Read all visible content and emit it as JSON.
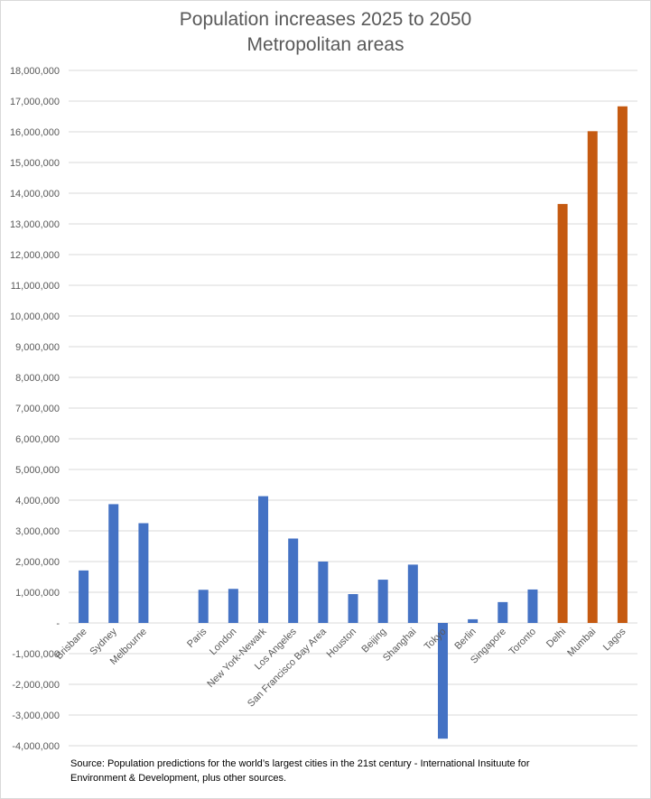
{
  "chart_data": {
    "type": "bar",
    "title": "Population increases 2025 to 2050",
    "subtitle": "Metropolitan areas",
    "xlabel": "",
    "ylabel": "",
    "ylim": [
      -4000000,
      18000000
    ],
    "ytick_step": 1000000,
    "ytick_labels": [
      "-4,000,000",
      "-3,000,000",
      "-2,000,000",
      "-1,000,000",
      "-",
      "1,000,000",
      "2,000,000",
      "3,000,000",
      "4,000,000",
      "5,000,000",
      "6,000,000",
      "7,000,000",
      "8,000,000",
      "9,000,000",
      "10,000,000",
      "11,000,000",
      "12,000,000",
      "13,000,000",
      "14,000,000",
      "15,000,000",
      "16,000,000",
      "17,000,000",
      "18,000,000"
    ],
    "grid": true,
    "legend": "none",
    "categories": [
      "Brisbane",
      "Sydney",
      "Melbourne",
      "",
      "Paris",
      "London",
      "New York-Newark",
      "Los Angeles",
      "San Francisco Bay Area",
      "Houston",
      "Beijing",
      "Shanghai",
      "Tokyo",
      "Berlin",
      "Singapore",
      "Toronto",
      "Delhi",
      "Mumbai",
      "Lagos"
    ],
    "values": [
      1710000,
      3870000,
      3250000,
      null,
      1080000,
      1110000,
      4130000,
      2750000,
      2000000,
      940000,
      1410000,
      1900000,
      -3770000,
      120000,
      680000,
      1090000,
      13650000,
      16020000,
      16830000
    ],
    "bar_colors": [
      "#4472C4",
      "#4472C4",
      "#4472C4",
      null,
      "#4472C4",
      "#4472C4",
      "#4472C4",
      "#4472C4",
      "#4472C4",
      "#4472C4",
      "#4472C4",
      "#4472C4",
      "#4472C4",
      "#4472C4",
      "#4472C4",
      "#4472C4",
      "#C55A11",
      "#C55A11",
      "#C55A11"
    ]
  },
  "source": "Source: Population predictions for the world’s largest cities in the 21st century -  International Insituute for Environment & Development, plus other sources."
}
